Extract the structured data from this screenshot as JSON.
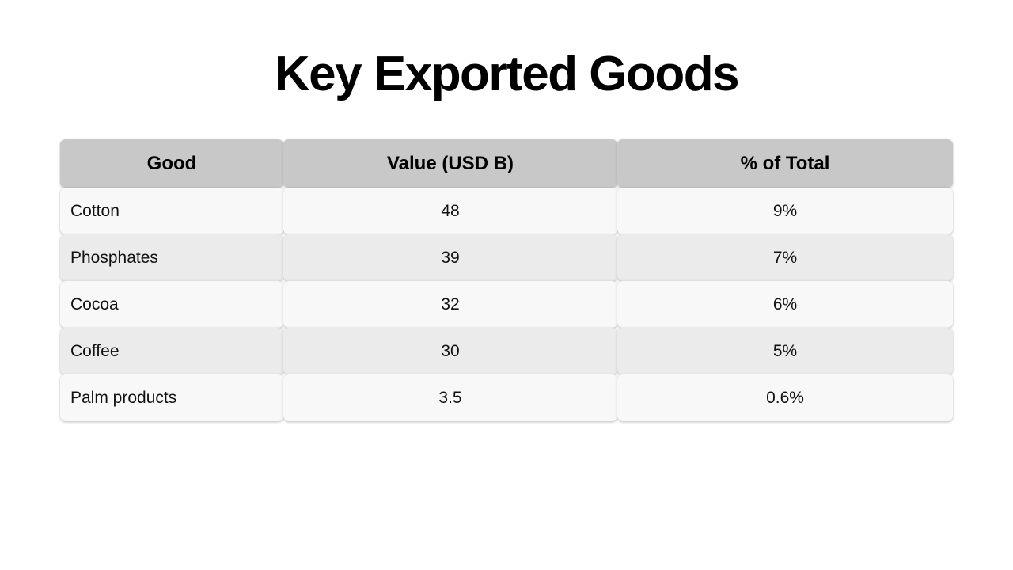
{
  "slide": {
    "title": "Key Exported Goods"
  },
  "table": {
    "headers": [
      "Good",
      "Value (USD B)",
      "% of Total"
    ],
    "rows": [
      [
        "Cotton",
        "48",
        "9%"
      ],
      [
        "Phosphates",
        "39",
        "7%"
      ],
      [
        "Cocoa",
        "32",
        "6%"
      ],
      [
        "Coffee",
        "30",
        "5%"
      ],
      [
        "Palm products",
        "3.5",
        "0.6%"
      ]
    ]
  },
  "colors": {
    "header_bg": "#c8c8c8",
    "row_light": "#f8f8f8",
    "row_dark": "#ebebeb"
  }
}
